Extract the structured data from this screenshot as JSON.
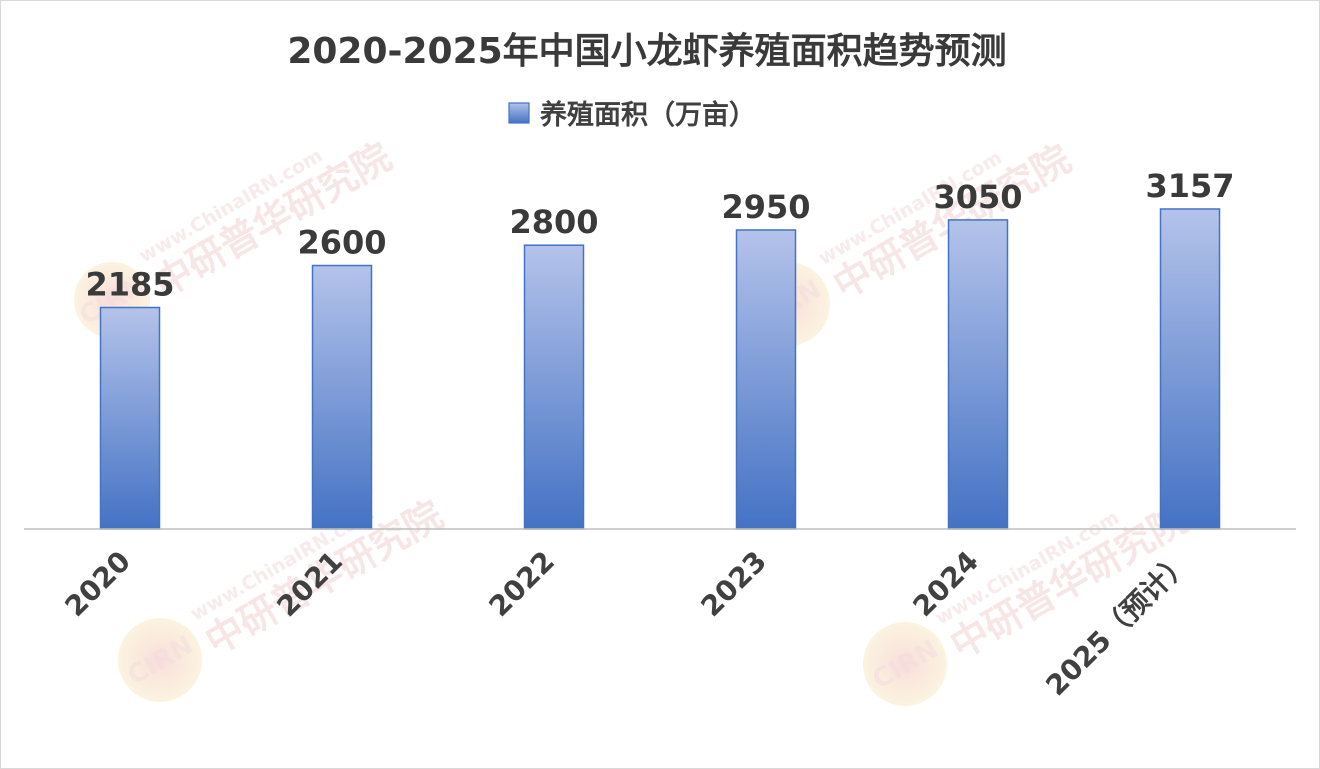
{
  "chart_data": {
    "type": "bar",
    "title": "2020-2025年中国小龙虾养殖面积趋势预测",
    "categories": [
      "2020",
      "2021",
      "2022",
      "2023",
      "2024",
      "2025（预计）"
    ],
    "series": [
      {
        "name": "养殖面积（万亩）",
        "values": [
          2185,
          2600,
          2800,
          2950,
          3050,
          3157
        ],
        "data_labels": [
          "2185",
          "2600",
          "2800",
          "2950",
          "3050",
          "3157"
        ]
      }
    ],
    "xlabel": "",
    "ylabel": "",
    "ylim": [
      0,
      3500
    ],
    "grid": false,
    "legend_position": "top-center",
    "axis_visible": false,
    "colors": {
      "bar_top": "#b4c3ea",
      "bar_bottom": "#4472c4",
      "bar_border": "#4472c4",
      "axis_line": "#bfbfbf",
      "text": "#404040"
    }
  },
  "watermark": {
    "cn": "中研普华研究院",
    "en": "www.ChinaIRN.com",
    "logo": "CIRN"
  }
}
